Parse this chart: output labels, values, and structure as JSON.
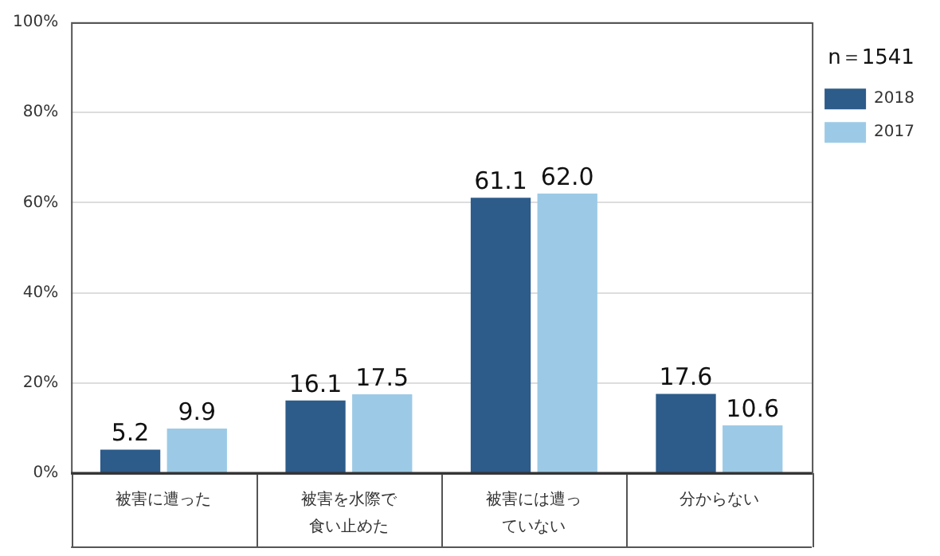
{
  "chart_data": {
    "type": "bar",
    "categories": [
      "被害に遭った",
      "被害を水際で食い止めた",
      "被害には遭っていない",
      "分からない"
    ],
    "series": [
      {
        "name": "2018",
        "color": "#2d5b8a",
        "values": [
          5.2,
          16.1,
          61.1,
          17.6
        ],
        "value_labels": [
          "5.2",
          "16.1",
          "61.1",
          "17.6"
        ]
      },
      {
        "name": "2017",
        "color": "#9ccae6",
        "values": [
          9.9,
          17.5,
          62.0,
          10.6
        ],
        "value_labels": [
          "9.9",
          "17.5",
          "62.0",
          "10.6"
        ]
      }
    ],
    "legend_title": "n＝1541",
    "legend": "top right",
    "grid": "y",
    "ylim": [
      0,
      100
    ],
    "yticks": [
      {
        "value": 0,
        "label": "0%"
      },
      {
        "value": 20,
        "label": "20%"
      },
      {
        "value": 40,
        "label": "40%"
      },
      {
        "value": 60,
        "label": "60%"
      },
      {
        "value": 80,
        "label": "80%"
      },
      {
        "value": 100,
        "label": "100%"
      }
    ]
  }
}
